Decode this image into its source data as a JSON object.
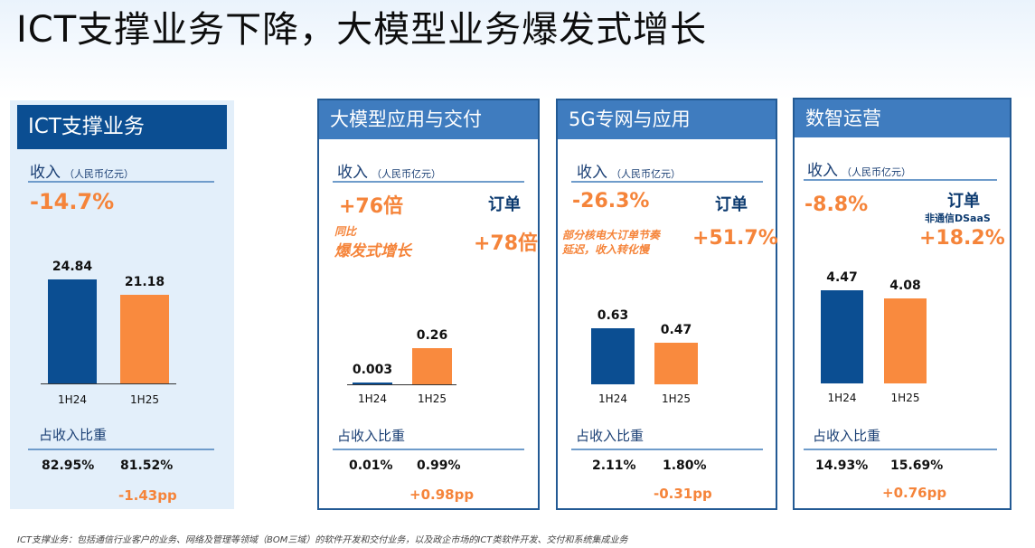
{
  "title": "ICT支撑业务下降，大模型业务爆发式增长",
  "revenue_label": "收入",
  "revenue_unit": "（人民币亿元）",
  "share_label": "占收入比重",
  "order_label": "订单",
  "colors": {
    "h1": "#0b4e92",
    "h2": "#f98a3e",
    "accent": "#f5843a",
    "header": "#3f7cbf"
  },
  "panels": [
    {
      "name": "ICT支撑业务",
      "revenue_change": "-14.7%",
      "share": [
        "82.95%",
        "81.52%"
      ],
      "share_change": "-1.43pp"
    },
    {
      "name": "大模型应用与交付",
      "revenue_change": "+76倍",
      "note_line1": "同比",
      "note_line2": "爆发式增长",
      "order_change": "+78倍",
      "share": [
        "0.01%",
        "0.99%"
      ],
      "share_change": "+0.98pp"
    },
    {
      "name": "5G专网与应用",
      "revenue_change": "-26.3%",
      "note_line1": "部分核电大订单节奏",
      "note_line2": "延迟，收入转化慢",
      "order_change": "+51.7%",
      "share": [
        "2.11%",
        "1.80%"
      ],
      "share_change": "-0.31pp"
    },
    {
      "name": "数智运营",
      "revenue_change": "-8.8%",
      "order_sub": "非通信DSaaS",
      "order_change": "+18.2%",
      "share": [
        "14.93%",
        "15.69%"
      ],
      "share_change": "+0.76pp"
    }
  ],
  "chart_data": [
    {
      "type": "bar",
      "title": "ICT支撑业务",
      "ylabel": "收入（人民币亿元）",
      "categories": [
        "1H24",
        "1H25"
      ],
      "values": [
        24.84,
        21.18
      ],
      "value_labels": [
        "24.84",
        "21.18"
      ]
    },
    {
      "type": "bar",
      "title": "大模型应用与交付",
      "ylabel": "收入（人民币亿元）",
      "categories": [
        "1H24",
        "1H25"
      ],
      "values": [
        0.003,
        0.26
      ],
      "value_labels": [
        "0.003",
        "0.26"
      ]
    },
    {
      "type": "bar",
      "title": "5G专网与应用",
      "ylabel": "收入（人民币亿元）",
      "categories": [
        "1H24",
        "1H25"
      ],
      "values": [
        0.63,
        0.47
      ],
      "value_labels": [
        "0.63",
        "0.47"
      ]
    },
    {
      "type": "bar",
      "title": "数智运营",
      "ylabel": "收入（人民币亿元）",
      "categories": [
        "1H24",
        "1H25"
      ],
      "values": [
        4.47,
        4.08
      ],
      "value_labels": [
        "4.47",
        "4.08"
      ]
    }
  ],
  "footnote": "ICT支撑业务：包括通信行业客户的业务、网络及管理等领域（BOM三域）的软件开发和交付业务，以及政企市场的ICT类软件开发、交付和系统集成业务"
}
